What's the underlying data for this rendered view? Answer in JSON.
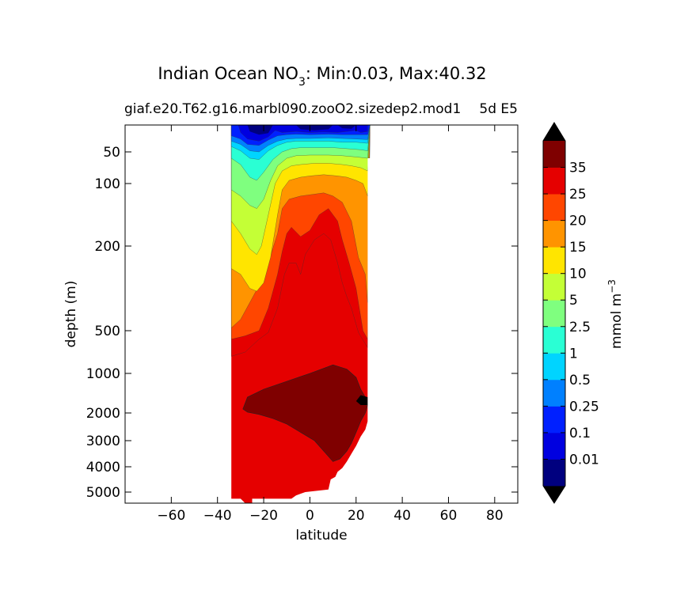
{
  "chart_data": {
    "type": "contour",
    "title_main": "Indian Ocean NO",
    "title_sub_script": "3",
    "title_rest": ": Min:0.03, Max:40.32",
    "subtitle_left": "giaf.e20.T62.g16.marbl090.zooO2.sizedep2.mod1",
    "subtitle_right": "5d E5",
    "xlabel": "latitude",
    "ylabel": "depth (m)",
    "xlim": [
      -80,
      90
    ],
    "x_ticks": [
      -60,
      -40,
      -20,
      0,
      20,
      40,
      60,
      80
    ],
    "x_tick_labels": [
      "−60",
      "−40",
      "−20",
      "0",
      "20",
      "40",
      "60",
      "80"
    ],
    "y_scale": "piecewise (stretched near surface)",
    "y_ticks": [
      50,
      100,
      200,
      500,
      1000,
      2000,
      3000,
      4000,
      5000
    ],
    "y_tick_labels": [
      "50",
      "100",
      "200",
      "500",
      "1000",
      "2000",
      "3000",
      "4000",
      "5000"
    ],
    "data_extent_lat": [
      -34,
      26
    ],
    "colorbar": {
      "label": "mmol m",
      "label_sup": "−3",
      "levels": [
        0,
        0.01,
        0.1,
        0.25,
        0.5,
        1,
        2.5,
        5,
        10,
        15,
        20,
        25,
        35
      ],
      "tick_labels": [
        "0.01",
        "0.1",
        "0.25",
        "0.5",
        "1",
        "2.5",
        "5",
        "10",
        "15",
        "20",
        "25",
        "35"
      ],
      "colors": [
        "#00007f",
        "#0000e0",
        "#0020ff",
        "#0080ff",
        "#00d4ff",
        "#2affd4",
        "#7fff7f",
        "#c4ff36",
        "#ffe500",
        "#ff9400",
        "#ff4600",
        "#e50000",
        "#7f0000"
      ],
      "extend": "both",
      "extend_color": "#000000"
    },
    "grid": false,
    "legend": "none"
  }
}
